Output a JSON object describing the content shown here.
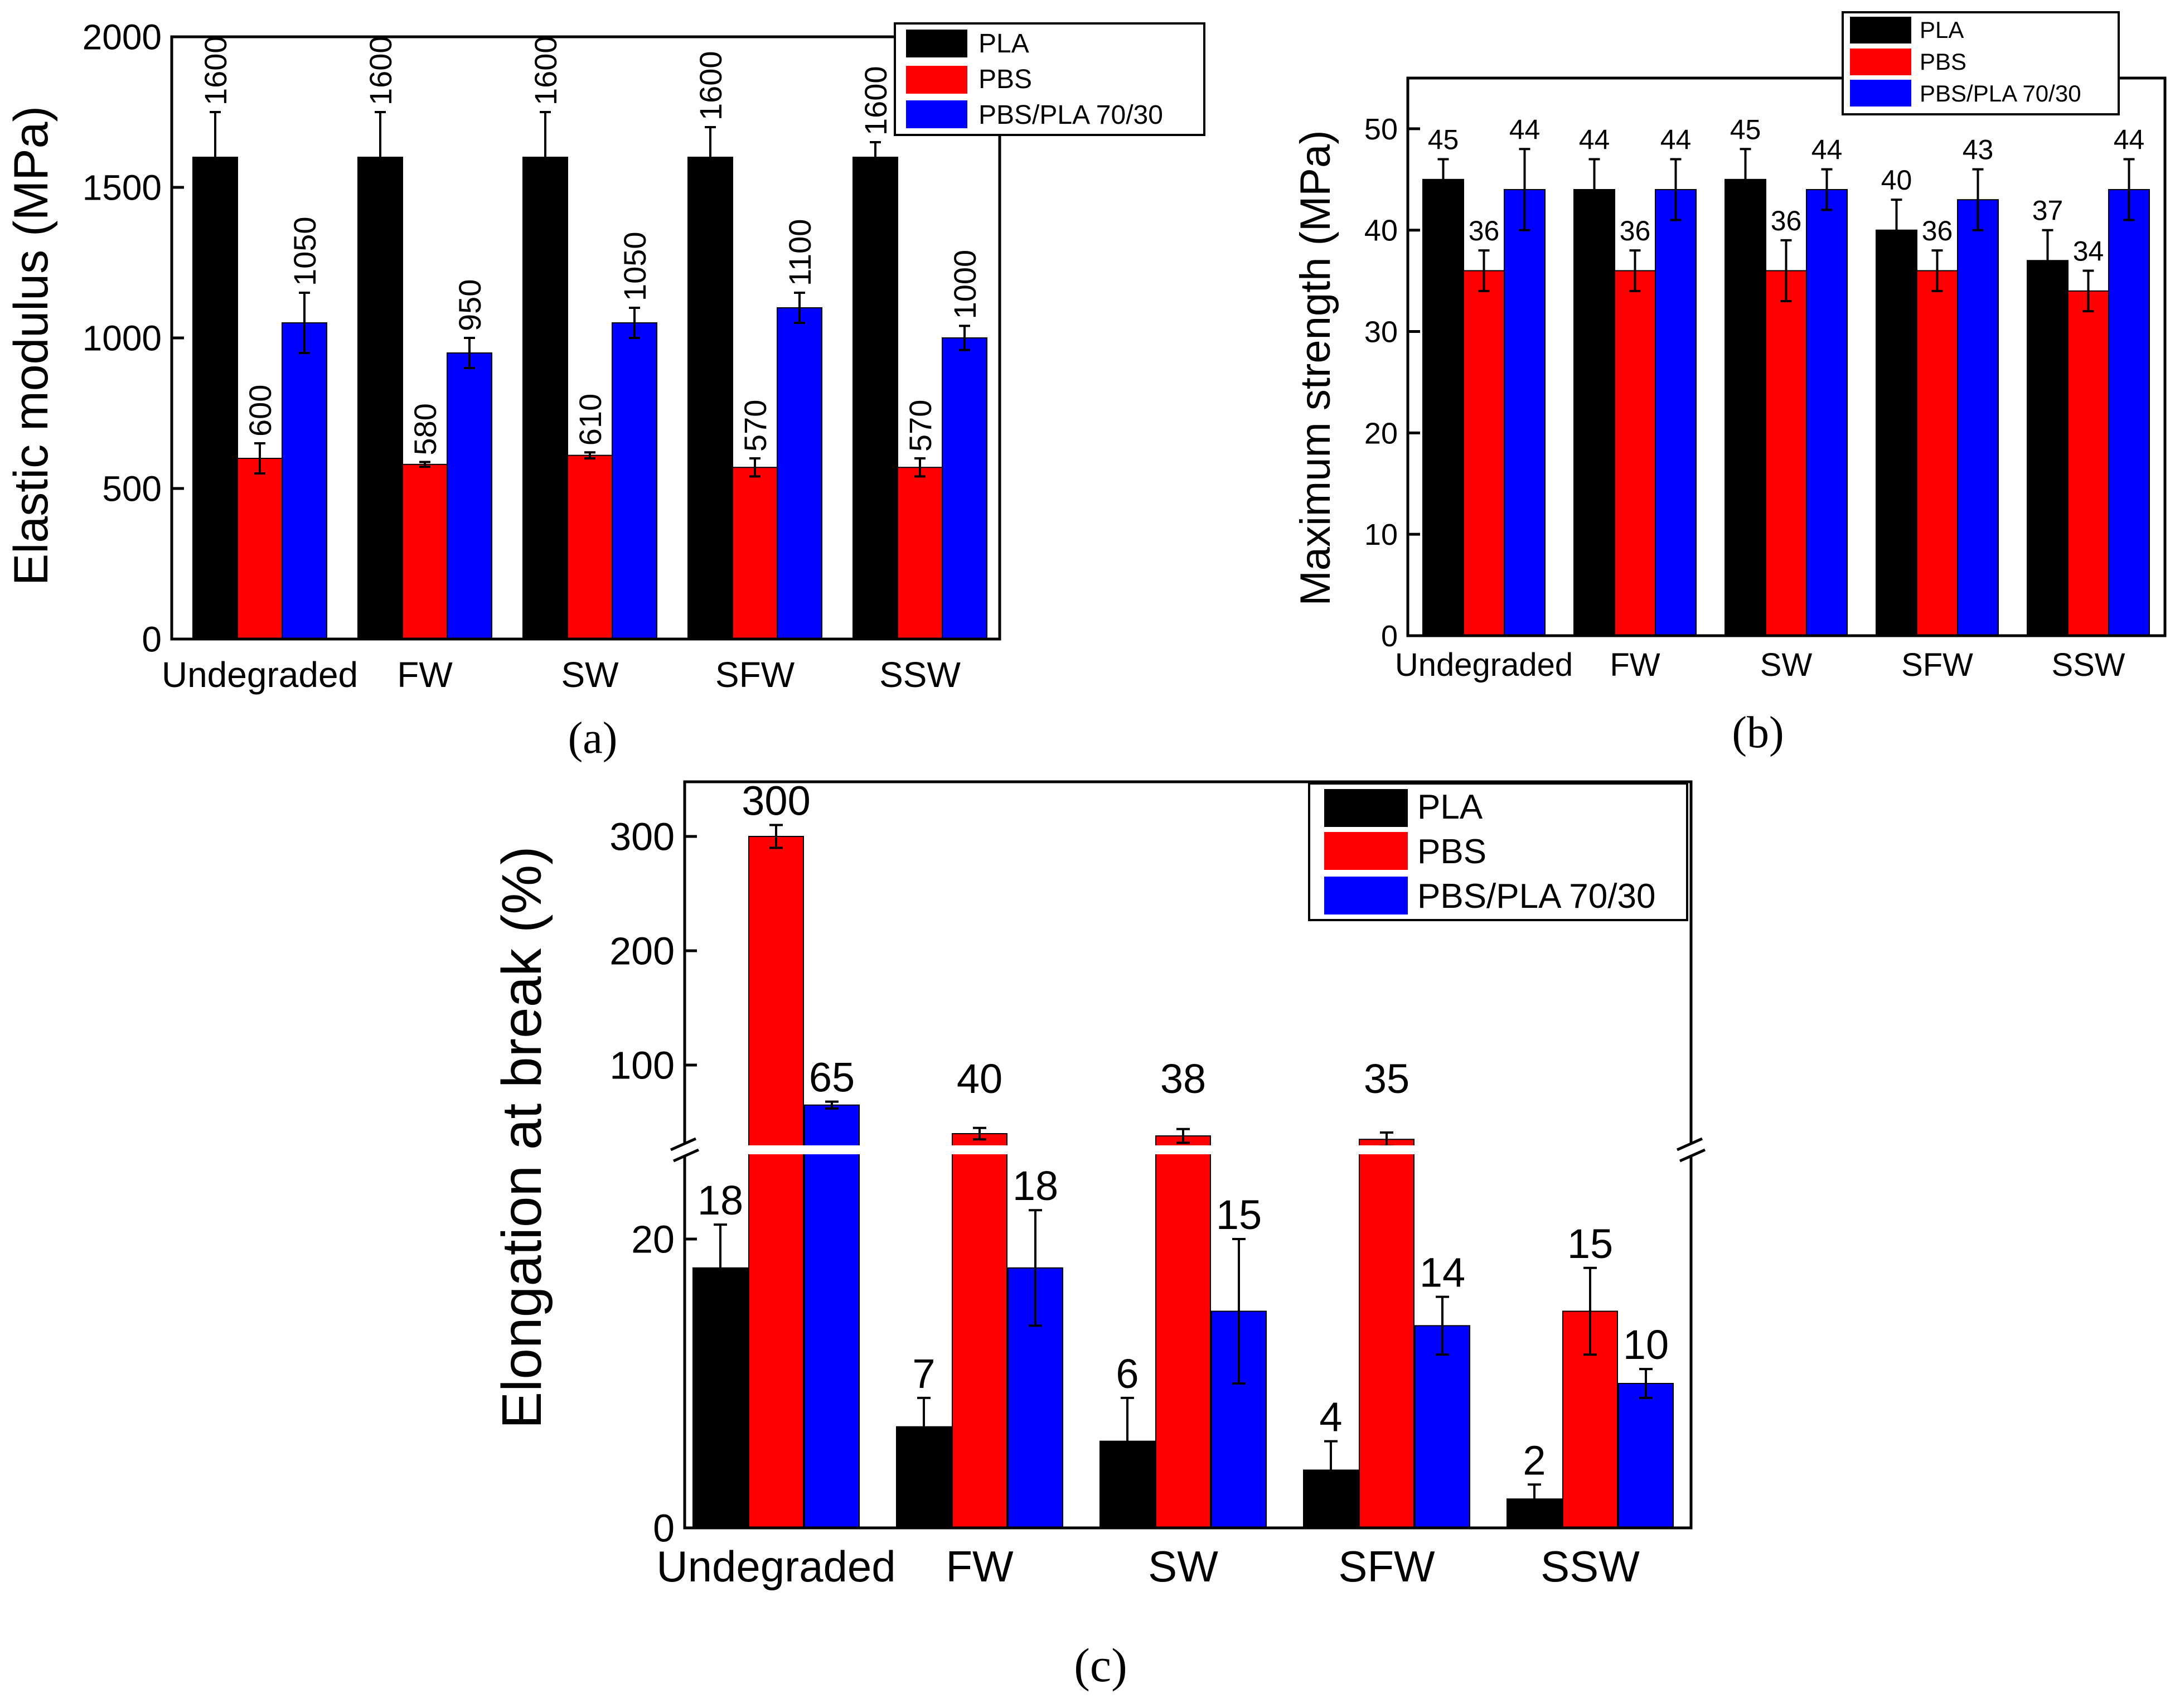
{
  "colors": {
    "series": [
      "#000000",
      "#ff0000",
      "#0000ff"
    ],
    "axis": "#000000",
    "background": "#ffffff"
  },
  "chart_data": [
    {
      "id": "a",
      "type": "bar",
      "panel_label": "(a)",
      "ylabel": "Elastic modulus (MPa)",
      "categories": [
        "Undegraded",
        "FW",
        "SW",
        "SFW",
        "SSW"
      ],
      "ylim": [
        0,
        2000
      ],
      "yticks": [
        0,
        500,
        1000,
        1500,
        2000
      ],
      "ytick_labels": [
        "0",
        "500",
        "1000",
        "1500",
        "2000"
      ],
      "label_orientation": "vertical",
      "legend_position": "top-right",
      "series": [
        {
          "name": "PLA",
          "values": [
            1600,
            1600,
            1600,
            1600,
            1600
          ],
          "errors": [
            150,
            150,
            150,
            100,
            50
          ],
          "labels": [
            "1600",
            "1600",
            "1600",
            "1600",
            "1600"
          ]
        },
        {
          "name": "PBS",
          "values": [
            600,
            580,
            610,
            570,
            570
          ],
          "errors": [
            50,
            8,
            10,
            30,
            30
          ],
          "labels": [
            "600",
            "580",
            "610",
            "570",
            "570"
          ]
        },
        {
          "name": "PBS/PLA 70/30",
          "values": [
            1050,
            950,
            1050,
            1100,
            1000
          ],
          "errors": [
            100,
            50,
            50,
            50,
            40
          ],
          "labels": [
            "1050",
            "950",
            "1050",
            "1100",
            "1000"
          ]
        }
      ]
    },
    {
      "id": "b",
      "type": "bar",
      "panel_label": "(b)",
      "ylabel": "Maximum strength (MPa)",
      "categories": [
        "Undegraded",
        "FW",
        "SW",
        "SFW",
        "SSW"
      ],
      "ylim": [
        0,
        55
      ],
      "yticks": [
        0,
        10,
        20,
        30,
        40,
        50
      ],
      "ytick_labels": [
        "0",
        "10",
        "20",
        "30",
        "40",
        "50"
      ],
      "label_orientation": "horizontal",
      "legend_position": "top-right",
      "series": [
        {
          "name": "PLA",
          "values": [
            45,
            44,
            45,
            40,
            37
          ],
          "errors": [
            2,
            3,
            3,
            3,
            3
          ],
          "labels": [
            "45",
            "44",
            "45",
            "40",
            "37"
          ]
        },
        {
          "name": "PBS",
          "values": [
            36,
            36,
            36,
            36,
            34
          ],
          "errors": [
            2,
            2,
            3,
            2,
            2
          ],
          "labels": [
            "36",
            "36",
            "36",
            "36",
            "34"
          ]
        },
        {
          "name": "PBS/PLA 70/30",
          "values": [
            44,
            44,
            44,
            43,
            44
          ],
          "errors": [
            4,
            3,
            2,
            3,
            3
          ],
          "labels": [
            "44",
            "44",
            "44",
            "43",
            "44"
          ]
        }
      ]
    },
    {
      "id": "c",
      "type": "bar",
      "panel_label": "(c)",
      "ylabel": "Elongation at break (%)",
      "categories": [
        "Undegraded",
        "FW",
        "SW",
        "SFW",
        "SSW"
      ],
      "ylim": [
        0,
        350
      ],
      "axis_break": [
        26,
        52
      ],
      "yticks": [
        0,
        20,
        100,
        200,
        300
      ],
      "ytick_labels": [
        "0",
        "20",
        "100",
        "200",
        "300"
      ],
      "label_orientation": "horizontal",
      "legend_position": "top-right",
      "series": [
        {
          "name": "PLA",
          "values": [
            18,
            7,
            6,
            4,
            2
          ],
          "errors": [
            3,
            2,
            3,
            2,
            1
          ],
          "labels": [
            "18",
            "7",
            "6",
            "4",
            "2"
          ]
        },
        {
          "name": "PBS",
          "values": [
            300,
            40,
            38,
            35,
            15
          ],
          "errors": [
            10,
            5,
            6,
            6,
            3
          ],
          "labels": [
            "300",
            "40",
            "38",
            "35",
            "15"
          ]
        },
        {
          "name": "PBS/PLA 70/30",
          "values": [
            65,
            18,
            15,
            14,
            10
          ],
          "errors": [
            3,
            4,
            5,
            2,
            1
          ],
          "labels": [
            "65",
            "18",
            "15",
            "14",
            "10"
          ]
        }
      ]
    }
  ]
}
